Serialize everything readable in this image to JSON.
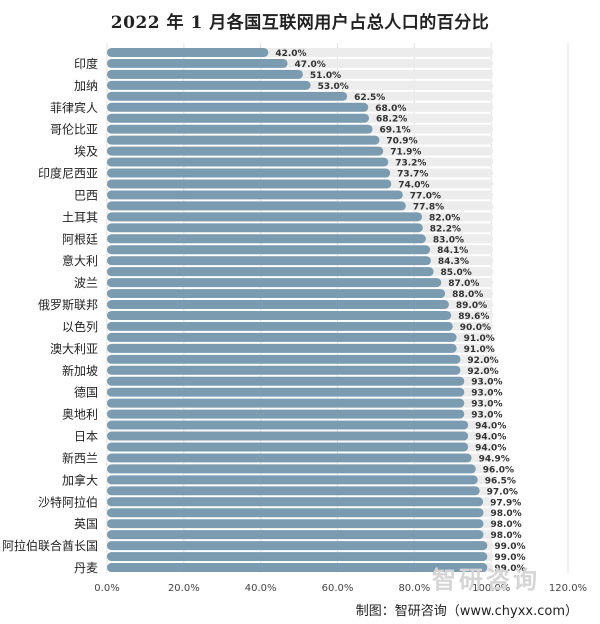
{
  "source": "制图：智研咨询（www.chyxx.com）",
  "watermark": "智研咨询",
  "colors": {
    "bar": "#7a9bb0",
    "track": "#ececec",
    "grid": "#e2e2e2"
  },
  "chart_data": {
    "type": "bar",
    "orientation": "horizontal",
    "title": "2022 年 1 月各国互联网用户占总人口的百分比",
    "xlim": [
      0,
      120
    ],
    "xticks": [
      "0.0%",
      "20.0%",
      "40.0%",
      "60.0%",
      "80.0%",
      "100.0%",
      "120.0%"
    ],
    "grid": true,
    "value_format": "percent_1dp",
    "categories": [
      "",
      "印度",
      "",
      "加纳",
      "",
      "菲律宾人",
      "",
      "哥伦比亚",
      "",
      "埃及",
      "",
      "印度尼西亚",
      "",
      "巴西",
      "",
      "土耳其",
      "",
      "阿根廷",
      "",
      "意大利",
      "",
      "波兰",
      "",
      "俄罗斯联邦",
      "",
      "以色列",
      "",
      "澳大利亚",
      "",
      "新加坡",
      "",
      "德国",
      "",
      "奥地利",
      "",
      "日本",
      "",
      "新西兰",
      "",
      "加拿大",
      "",
      "沙特阿拉伯",
      "",
      "英国",
      "",
      "阿拉伯联合酋长国",
      "",
      "丹麦"
    ],
    "values": [
      42.0,
      47.0,
      51.0,
      53.0,
      62.5,
      68.0,
      68.2,
      69.1,
      70.9,
      71.9,
      73.2,
      73.7,
      74.0,
      77.0,
      77.8,
      82.0,
      82.2,
      83.0,
      84.1,
      84.3,
      85.0,
      87.0,
      88.0,
      89.0,
      89.6,
      90.0,
      91.0,
      91.0,
      92.0,
      92.0,
      93.0,
      93.0,
      93.0,
      93.0,
      94.0,
      94.0,
      94.0,
      94.9,
      96.0,
      96.5,
      97.0,
      97.9,
      98.0,
      98.0,
      98.0,
      99.0,
      99.0,
      99.0
    ]
  }
}
